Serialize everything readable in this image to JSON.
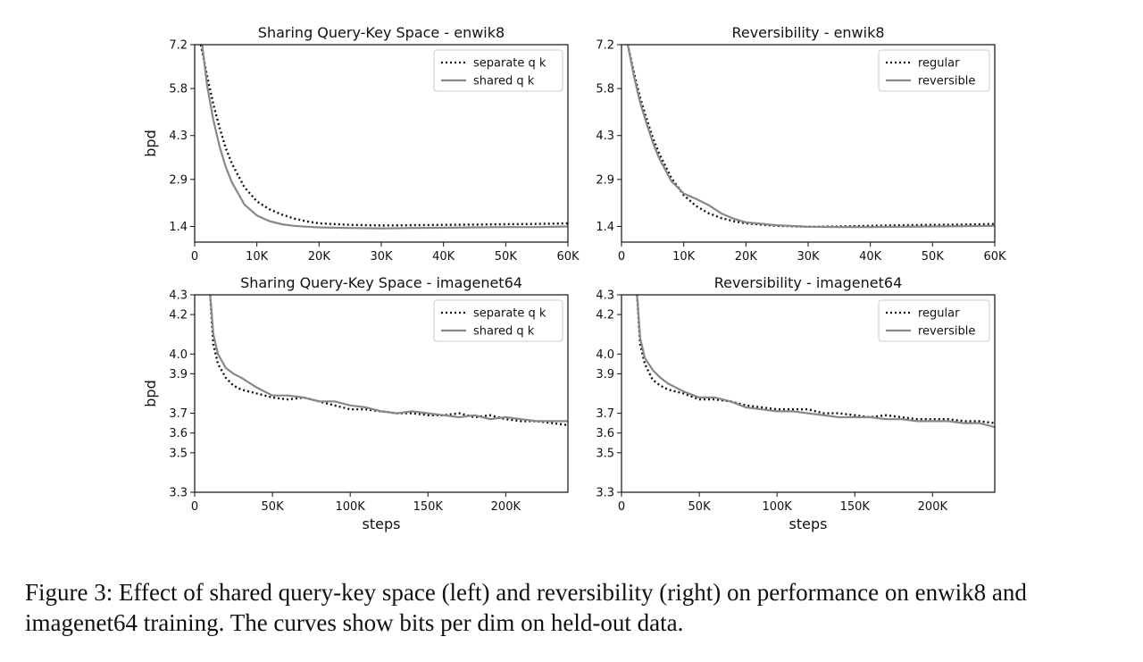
{
  "caption": "Figure 3: Effect of shared query-key space (left) and reversibility (right) on performance on enwik8 and imagenet64 training. The curves show bits per dim on held-out data.",
  "chart_data": [
    {
      "type": "line",
      "title": "Sharing Query-Key Space - enwik8",
      "xlabel": "",
      "ylabel": "bpd",
      "xlim": [
        0,
        60000
      ],
      "ylim": [
        0.9,
        7.2
      ],
      "xticks": [
        0,
        10000,
        20000,
        30000,
        40000,
        50000,
        60000
      ],
      "xtick_labels": [
        "0",
        "10K",
        "20K",
        "30K",
        "40K",
        "50K",
        "60K"
      ],
      "yticks": [
        1.4,
        2.9,
        4.3,
        5.8,
        7.2
      ],
      "ytick_labels": [
        "1.4",
        "2.9",
        "4.3",
        "5.8",
        "7.2"
      ],
      "legend": "top-right",
      "series": [
        {
          "name": "separate q k",
          "style": "dotted",
          "color": "#111111",
          "x": [
            1000,
            2000,
            3000,
            4000,
            5000,
            6000,
            8000,
            10000,
            12000,
            14000,
            16000,
            18000,
            20000,
            25000,
            30000,
            35000,
            40000,
            45000,
            50000,
            55000,
            60000
          ],
          "y": [
            7.2,
            6.2,
            5.3,
            4.55,
            3.9,
            3.4,
            2.65,
            2.2,
            1.95,
            1.78,
            1.65,
            1.56,
            1.5,
            1.45,
            1.43,
            1.44,
            1.45,
            1.46,
            1.47,
            1.48,
            1.5
          ]
        },
        {
          "name": "shared q k",
          "style": "solid",
          "color": "#888888",
          "x": [
            1200,
            2000,
            3000,
            4000,
            5000,
            6000,
            8000,
            10000,
            12000,
            14000,
            16000,
            18000,
            20000,
            25000,
            30000,
            35000,
            40000,
            45000,
            50000,
            55000,
            60000
          ],
          "y": [
            7.2,
            5.9,
            4.8,
            3.95,
            3.3,
            2.8,
            2.1,
            1.75,
            1.57,
            1.47,
            1.42,
            1.39,
            1.37,
            1.35,
            1.34,
            1.35,
            1.36,
            1.37,
            1.38,
            1.38,
            1.4
          ]
        }
      ]
    },
    {
      "type": "line",
      "title": "Reversibility - enwik8",
      "xlabel": "",
      "ylabel": "",
      "xlim": [
        0,
        60000
      ],
      "ylim": [
        0.9,
        7.2
      ],
      "xticks": [
        0,
        10000,
        20000,
        30000,
        40000,
        50000,
        60000
      ],
      "xtick_labels": [
        "0",
        "10K",
        "20K",
        "30K",
        "40K",
        "50K",
        "60K"
      ],
      "yticks": [
        1.4,
        2.9,
        4.3,
        5.8,
        7.2
      ],
      "ytick_labels": [
        "1.4",
        "2.9",
        "4.3",
        "5.8",
        "7.2"
      ],
      "legend": "top-right",
      "series": [
        {
          "name": "regular",
          "style": "dotted",
          "color": "#111111",
          "x": [
            1000,
            2000,
            3000,
            4000,
            5000,
            6000,
            8000,
            10000,
            12000,
            14000,
            16000,
            18000,
            20000,
            25000,
            30000,
            35000,
            40000,
            45000,
            50000,
            55000,
            60000
          ],
          "y": [
            7.2,
            6.3,
            5.5,
            4.85,
            4.25,
            3.75,
            2.95,
            2.4,
            2.05,
            1.82,
            1.67,
            1.57,
            1.5,
            1.42,
            1.39,
            1.4,
            1.42,
            1.44,
            1.45,
            1.46,
            1.48
          ]
        },
        {
          "name": "reversible",
          "style": "solid",
          "color": "#888888",
          "x": [
            1000,
            2000,
            3000,
            4000,
            5000,
            6000,
            8000,
            10000,
            12000,
            14000,
            16000,
            18000,
            20000,
            25000,
            30000,
            35000,
            40000,
            45000,
            50000,
            55000,
            60000
          ],
          "y": [
            7.2,
            6.2,
            5.35,
            4.7,
            4.1,
            3.6,
            2.85,
            2.45,
            2.28,
            2.08,
            1.82,
            1.65,
            1.53,
            1.44,
            1.39,
            1.38,
            1.38,
            1.39,
            1.4,
            1.41,
            1.42
          ]
        }
      ]
    },
    {
      "type": "line",
      "title": "Sharing Query-Key Space - imagenet64",
      "xlabel": "steps",
      "ylabel": "bpd",
      "xlim": [
        0,
        240000
      ],
      "ylim": [
        3.3,
        4.3
      ],
      "xticks": [
        0,
        50000,
        100000,
        150000,
        200000
      ],
      "xtick_labels": [
        "0",
        "50K",
        "100K",
        "150K",
        "200K"
      ],
      "yticks": [
        3.3,
        3.5,
        3.6,
        3.7,
        3.9,
        4.0,
        4.2,
        4.3
      ],
      "ytick_labels": [
        "3.3",
        "3.5",
        "3.6",
        "3.7",
        "3.9",
        "4.0",
        "4.2",
        "4.3"
      ],
      "legend": "top-right",
      "series": [
        {
          "name": "separate q k",
          "style": "dotted",
          "color": "#111111",
          "x": [
            10000,
            12000,
            15000,
            20000,
            25000,
            30000,
            40000,
            50000,
            60000,
            70000,
            80000,
            90000,
            100000,
            110000,
            120000,
            130000,
            140000,
            150000,
            160000,
            170000,
            180000,
            190000,
            200000,
            210000,
            220000,
            230000,
            240000
          ],
          "y": [
            4.3,
            4.05,
            3.95,
            3.88,
            3.84,
            3.82,
            3.8,
            3.78,
            3.77,
            3.78,
            3.76,
            3.74,
            3.72,
            3.72,
            3.71,
            3.7,
            3.7,
            3.69,
            3.69,
            3.7,
            3.68,
            3.69,
            3.67,
            3.66,
            3.66,
            3.65,
            3.64
          ]
        },
        {
          "name": "shared q k",
          "style": "solid",
          "color": "#888888",
          "x": [
            10000,
            12000,
            15000,
            20000,
            25000,
            30000,
            40000,
            50000,
            60000,
            70000,
            80000,
            90000,
            100000,
            110000,
            120000,
            130000,
            140000,
            150000,
            160000,
            170000,
            180000,
            190000,
            200000,
            210000,
            220000,
            230000,
            240000
          ],
          "y": [
            4.3,
            4.1,
            4.0,
            3.93,
            3.9,
            3.88,
            3.83,
            3.79,
            3.79,
            3.78,
            3.76,
            3.76,
            3.74,
            3.73,
            3.71,
            3.7,
            3.71,
            3.7,
            3.69,
            3.68,
            3.69,
            3.67,
            3.68,
            3.67,
            3.66,
            3.66,
            3.66
          ]
        }
      ]
    },
    {
      "type": "line",
      "title": "Reversibility - imagenet64",
      "xlabel": "steps",
      "ylabel": "",
      "xlim": [
        0,
        240000
      ],
      "ylim": [
        3.3,
        4.3
      ],
      "xticks": [
        0,
        50000,
        100000,
        150000,
        200000
      ],
      "xtick_labels": [
        "0",
        "50K",
        "100K",
        "150K",
        "200K"
      ],
      "yticks": [
        3.3,
        3.5,
        3.6,
        3.7,
        3.9,
        4.0,
        4.2,
        4.3
      ],
      "ytick_labels": [
        "3.3",
        "3.5",
        "3.6",
        "3.7",
        "3.9",
        "4.0",
        "4.2",
        "4.3"
      ],
      "legend": "top-right",
      "series": [
        {
          "name": "regular",
          "style": "dotted",
          "color": "#111111",
          "x": [
            10000,
            12000,
            15000,
            20000,
            25000,
            30000,
            40000,
            50000,
            60000,
            70000,
            80000,
            90000,
            100000,
            110000,
            120000,
            130000,
            140000,
            150000,
            160000,
            170000,
            180000,
            190000,
            200000,
            210000,
            220000,
            230000,
            240000
          ],
          "y": [
            4.3,
            4.05,
            3.95,
            3.87,
            3.84,
            3.82,
            3.8,
            3.77,
            3.77,
            3.76,
            3.74,
            3.73,
            3.72,
            3.72,
            3.72,
            3.7,
            3.7,
            3.69,
            3.68,
            3.69,
            3.68,
            3.67,
            3.67,
            3.67,
            3.66,
            3.66,
            3.65
          ]
        },
        {
          "name": "reversible",
          "style": "solid",
          "color": "#888888",
          "x": [
            10000,
            12000,
            15000,
            20000,
            25000,
            30000,
            40000,
            50000,
            60000,
            70000,
            80000,
            90000,
            100000,
            110000,
            120000,
            130000,
            140000,
            150000,
            160000,
            170000,
            180000,
            190000,
            200000,
            210000,
            220000,
            230000,
            240000
          ],
          "y": [
            4.3,
            4.08,
            3.98,
            3.92,
            3.88,
            3.85,
            3.81,
            3.78,
            3.78,
            3.76,
            3.73,
            3.72,
            3.71,
            3.71,
            3.7,
            3.69,
            3.68,
            3.68,
            3.68,
            3.67,
            3.67,
            3.66,
            3.66,
            3.66,
            3.65,
            3.65,
            3.63
          ]
        }
      ]
    }
  ]
}
